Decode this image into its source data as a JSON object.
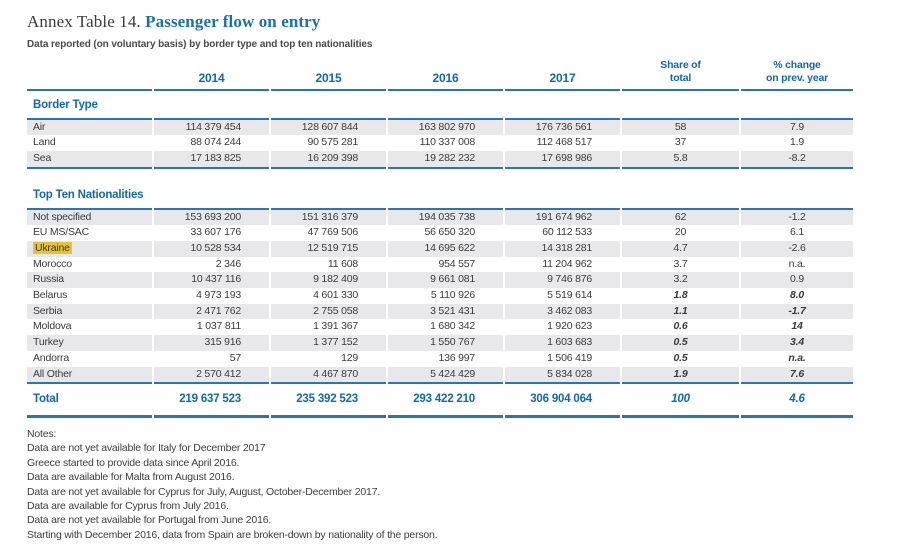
{
  "title": {
    "prefix": "Annex Table 14.",
    "main": "Passenger flow on entry"
  },
  "subtitle": "Data reported (on voluntary basis) by border type and top ten nationalities",
  "colors": {
    "accent_blue": "#1268b3",
    "line_blue": "#2e74b5",
    "stripe_gray": "#e8e8ea",
    "highlight_yellow": "#e3c23e"
  },
  "table": {
    "headers": {
      "y2014": "2014",
      "y2015": "2015",
      "y2016": "2016",
      "y2017": "2017",
      "share_line1": "Share of",
      "share_line2": "total",
      "change_line1": "% change",
      "change_line2": "on prev. year"
    },
    "sections": [
      {
        "label": "Border Type",
        "rows": [
          {
            "name": "Air",
            "values": [
              "114 379 454",
              "128 607 844",
              "163 802 970",
              "176 736 561"
            ],
            "share": "58",
            "change": "7.9",
            "em": false,
            "highlight": false
          },
          {
            "name": "Land",
            "values": [
              "88 074 244",
              "90 575 281",
              "110 337 008",
              "112 468 517"
            ],
            "share": "37",
            "change": "1.9",
            "em": false,
            "highlight": false
          },
          {
            "name": "Sea",
            "values": [
              "17 183 825",
              "16 209 398",
              "19 282 232",
              "17 698 986"
            ],
            "share": "5.8",
            "change": "-8.2",
            "em": false,
            "highlight": false
          }
        ]
      },
      {
        "label": "Top Ten Nationalities",
        "rows": [
          {
            "name": "Not specified",
            "values": [
              "153 693 200",
              "151 316 379",
              "194 035 738",
              "191 674 962"
            ],
            "share": "62",
            "change": "-1.2",
            "em": false,
            "highlight": false
          },
          {
            "name": "EU MS/SAC",
            "values": [
              "33 607 176",
              "47 769 506",
              "56 650 320",
              "60 112 533"
            ],
            "share": "20",
            "change": "6.1",
            "em": false,
            "highlight": false
          },
          {
            "name": "Ukraine",
            "values": [
              "10 528 534",
              "12 519 715",
              "14 695 622",
              "14 318 281"
            ],
            "share": "4.7",
            "change": "-2.6",
            "em": false,
            "highlight": true
          },
          {
            "name": "Morocco",
            "values": [
              "2 346",
              "11 608",
              "954 557",
              "11 204 962"
            ],
            "share": "3.7",
            "change": "n.a.",
            "em": false,
            "highlight": false
          },
          {
            "name": "Russia",
            "values": [
              "10 437 116",
              "9 182 409",
              "9 661 081",
              "9 746 876"
            ],
            "share": "3.2",
            "change": "0.9",
            "em": false,
            "highlight": false
          },
          {
            "name": "Belarus",
            "values": [
              "4 973 193",
              "4 601 330",
              "5 110 926",
              "5 519 614"
            ],
            "share": "1.8",
            "change": "8.0",
            "em": true,
            "highlight": false
          },
          {
            "name": "Serbia",
            "values": [
              "2 471 762",
              "2 755 058",
              "3 521 431",
              "3 462 083"
            ],
            "share": "1.1",
            "change": "-1.7",
            "em": true,
            "highlight": false
          },
          {
            "name": "Moldova",
            "values": [
              "1 037 811",
              "1 391 367",
              "1 680 342",
              "1 920 623"
            ],
            "share": "0.6",
            "change": "14",
            "em": true,
            "highlight": false
          },
          {
            "name": "Turkey",
            "values": [
              "315 916",
              "1 377 152",
              "1 550 767",
              "1 603 683"
            ],
            "share": "0.5",
            "change": "3.4",
            "em": true,
            "highlight": false
          },
          {
            "name": "Andorra",
            "values": [
              "57",
              "129",
              "136 997",
              "1 506 419"
            ],
            "share": "0.5",
            "change": "n.a.",
            "em": true,
            "highlight": false
          },
          {
            "name": "All Other",
            "values": [
              "2 570 412",
              "4 467 870",
              "5 424 429",
              "5 834 028"
            ],
            "share": "1.9",
            "change": "7.6",
            "em": true,
            "highlight": false
          }
        ]
      }
    ],
    "total": {
      "name": "Total",
      "values": [
        "219 637 523",
        "235 392 523",
        "293 422 210",
        "306 904 064"
      ],
      "share": "100",
      "change": "4.6"
    }
  },
  "notes": {
    "heading": "Notes:",
    "lines": [
      "Data are not yet available for Italy for December 2017",
      "Greece started to provide data since April 2016.",
      "Data are available for Malta from August 2016.",
      "Data are not yet available for Cyprus for July, August, October-December 2017.",
      "Data are available for Cyprus from July 2016.",
      "Data are not yet available for Portugal from June 2016.",
      "Starting with December 2016, data from Spain are broken-down by nationality of the person."
    ]
  }
}
